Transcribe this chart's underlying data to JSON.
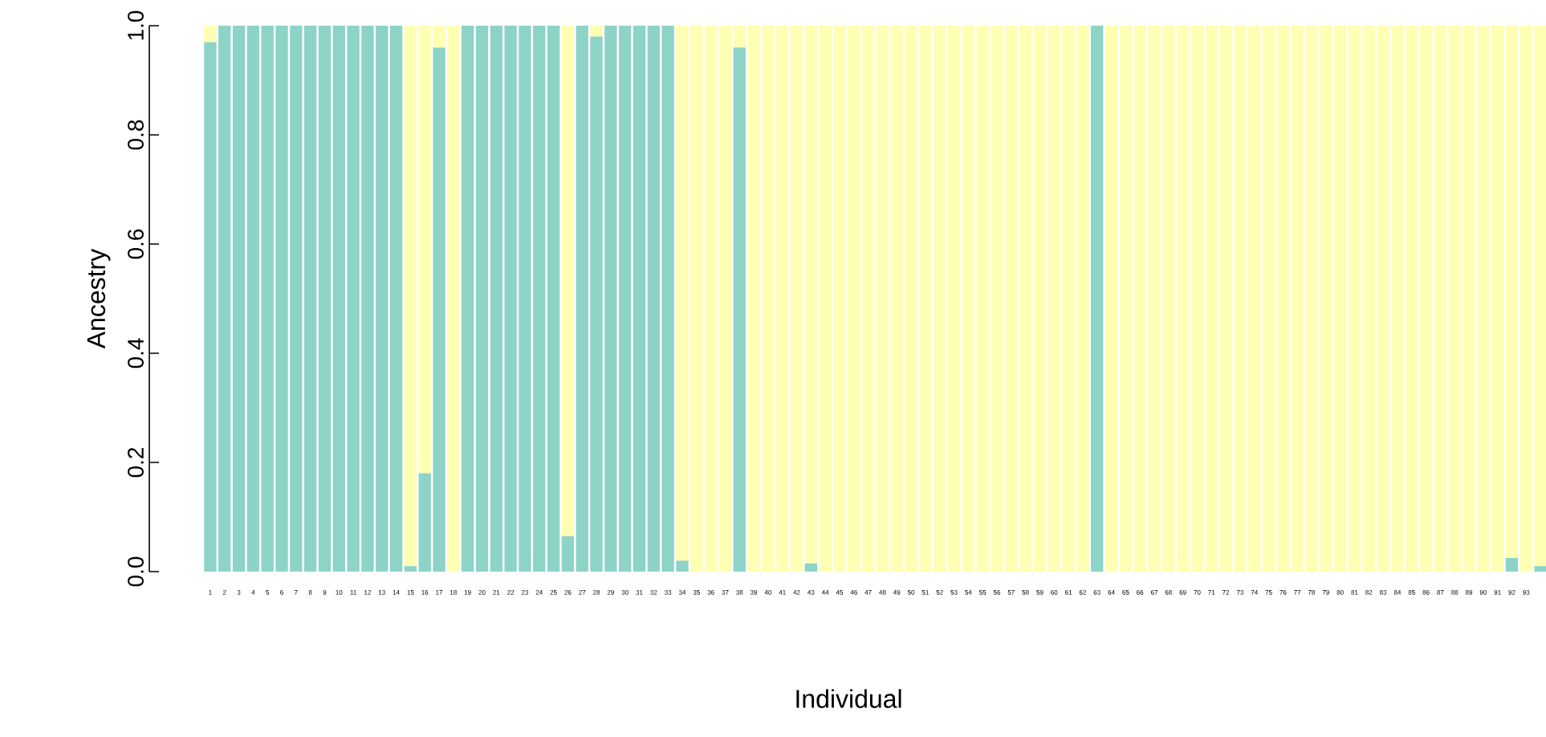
{
  "chart_data": {
    "type": "bar",
    "stacked": true,
    "xlabel": "Individual",
    "ylabel": "Ancestry",
    "categories": [
      "1",
      "2",
      "3",
      "4",
      "5",
      "6",
      "7",
      "8",
      "9",
      "10",
      "11",
      "12",
      "13",
      "14",
      "15",
      "16",
      "17",
      "18",
      "19",
      "20",
      "21",
      "22",
      "23",
      "24",
      "25",
      "26",
      "27",
      "28",
      "29",
      "30",
      "31",
      "32",
      "33",
      "34",
      "35",
      "36",
      "37",
      "38",
      "39",
      "40",
      "41",
      "42",
      "43",
      "44",
      "45",
      "46",
      "47",
      "48",
      "49",
      "50",
      "51",
      "52",
      "53",
      "54",
      "55",
      "56",
      "57",
      "58",
      "59",
      "60",
      "61",
      "62",
      "63",
      "64",
      "65",
      "66",
      "67",
      "68",
      "69",
      "70",
      "71",
      "72",
      "73",
      "74",
      "75",
      "76",
      "77",
      "78",
      "79",
      "80",
      "81",
      "82",
      "83",
      "84",
      "85",
      "86",
      "87",
      "88",
      "89",
      "90",
      "91",
      "92",
      "93",
      null
    ],
    "series": [
      {
        "color": "#8dd3c7",
        "values": [
          0.97,
          1,
          1,
          1,
          1,
          1,
          1,
          1,
          1,
          1,
          1,
          1,
          1,
          1,
          0.01,
          0.18,
          0.96,
          0,
          1,
          1,
          1,
          1,
          1,
          1,
          1,
          0.065,
          1,
          0.98,
          1,
          1,
          1,
          1,
          1,
          0.02,
          0,
          0,
          0,
          0.96,
          0,
          0,
          0,
          0,
          0.015,
          0,
          0,
          0,
          0,
          0,
          0,
          0,
          0,
          0,
          0,
          0,
          0,
          0,
          0,
          0,
          0,
          0,
          0,
          0,
          1,
          0,
          0,
          0,
          0,
          0,
          0,
          0,
          0,
          0,
          0,
          0,
          0,
          0,
          0,
          0,
          0,
          0,
          0,
          0,
          0,
          0,
          0,
          0,
          0,
          0,
          0,
          0,
          0,
          0.025,
          0,
          0.01
        ]
      },
      {
        "color": "#ffffb3",
        "values": [
          0.03,
          0,
          0,
          0,
          0,
          0,
          0,
          0,
          0,
          0,
          0,
          0,
          0,
          0,
          0.99,
          0.82,
          0.04,
          1,
          0,
          0,
          0,
          0,
          0,
          0,
          0,
          0.935,
          0,
          0.02,
          0,
          0,
          0,
          0,
          0,
          0.98,
          1,
          1,
          1,
          0.04,
          1,
          1,
          1,
          1,
          0.985,
          1,
          1,
          1,
          1,
          1,
          1,
          1,
          1,
          1,
          1,
          1,
          1,
          1,
          1,
          1,
          1,
          1,
          1,
          1,
          0,
          1,
          1,
          1,
          1,
          1,
          1,
          1,
          1,
          1,
          1,
          1,
          1,
          1,
          1,
          1,
          1,
          1,
          1,
          1,
          1,
          1,
          1,
          1,
          1,
          1,
          1,
          1,
          1,
          0.975,
          1,
          0.99
        ]
      }
    ],
    "ylim": [
      0,
      1
    ],
    "yticks": [
      {
        "value": 0,
        "label": "0.0"
      },
      {
        "value": 0.2,
        "label": "0.2"
      },
      {
        "value": 0.4,
        "label": "0.4"
      },
      {
        "value": 0.6,
        "label": "0.6"
      },
      {
        "value": 0.8,
        "label": "0.8"
      },
      {
        "value": 1,
        "label": "1.0"
      }
    ]
  }
}
